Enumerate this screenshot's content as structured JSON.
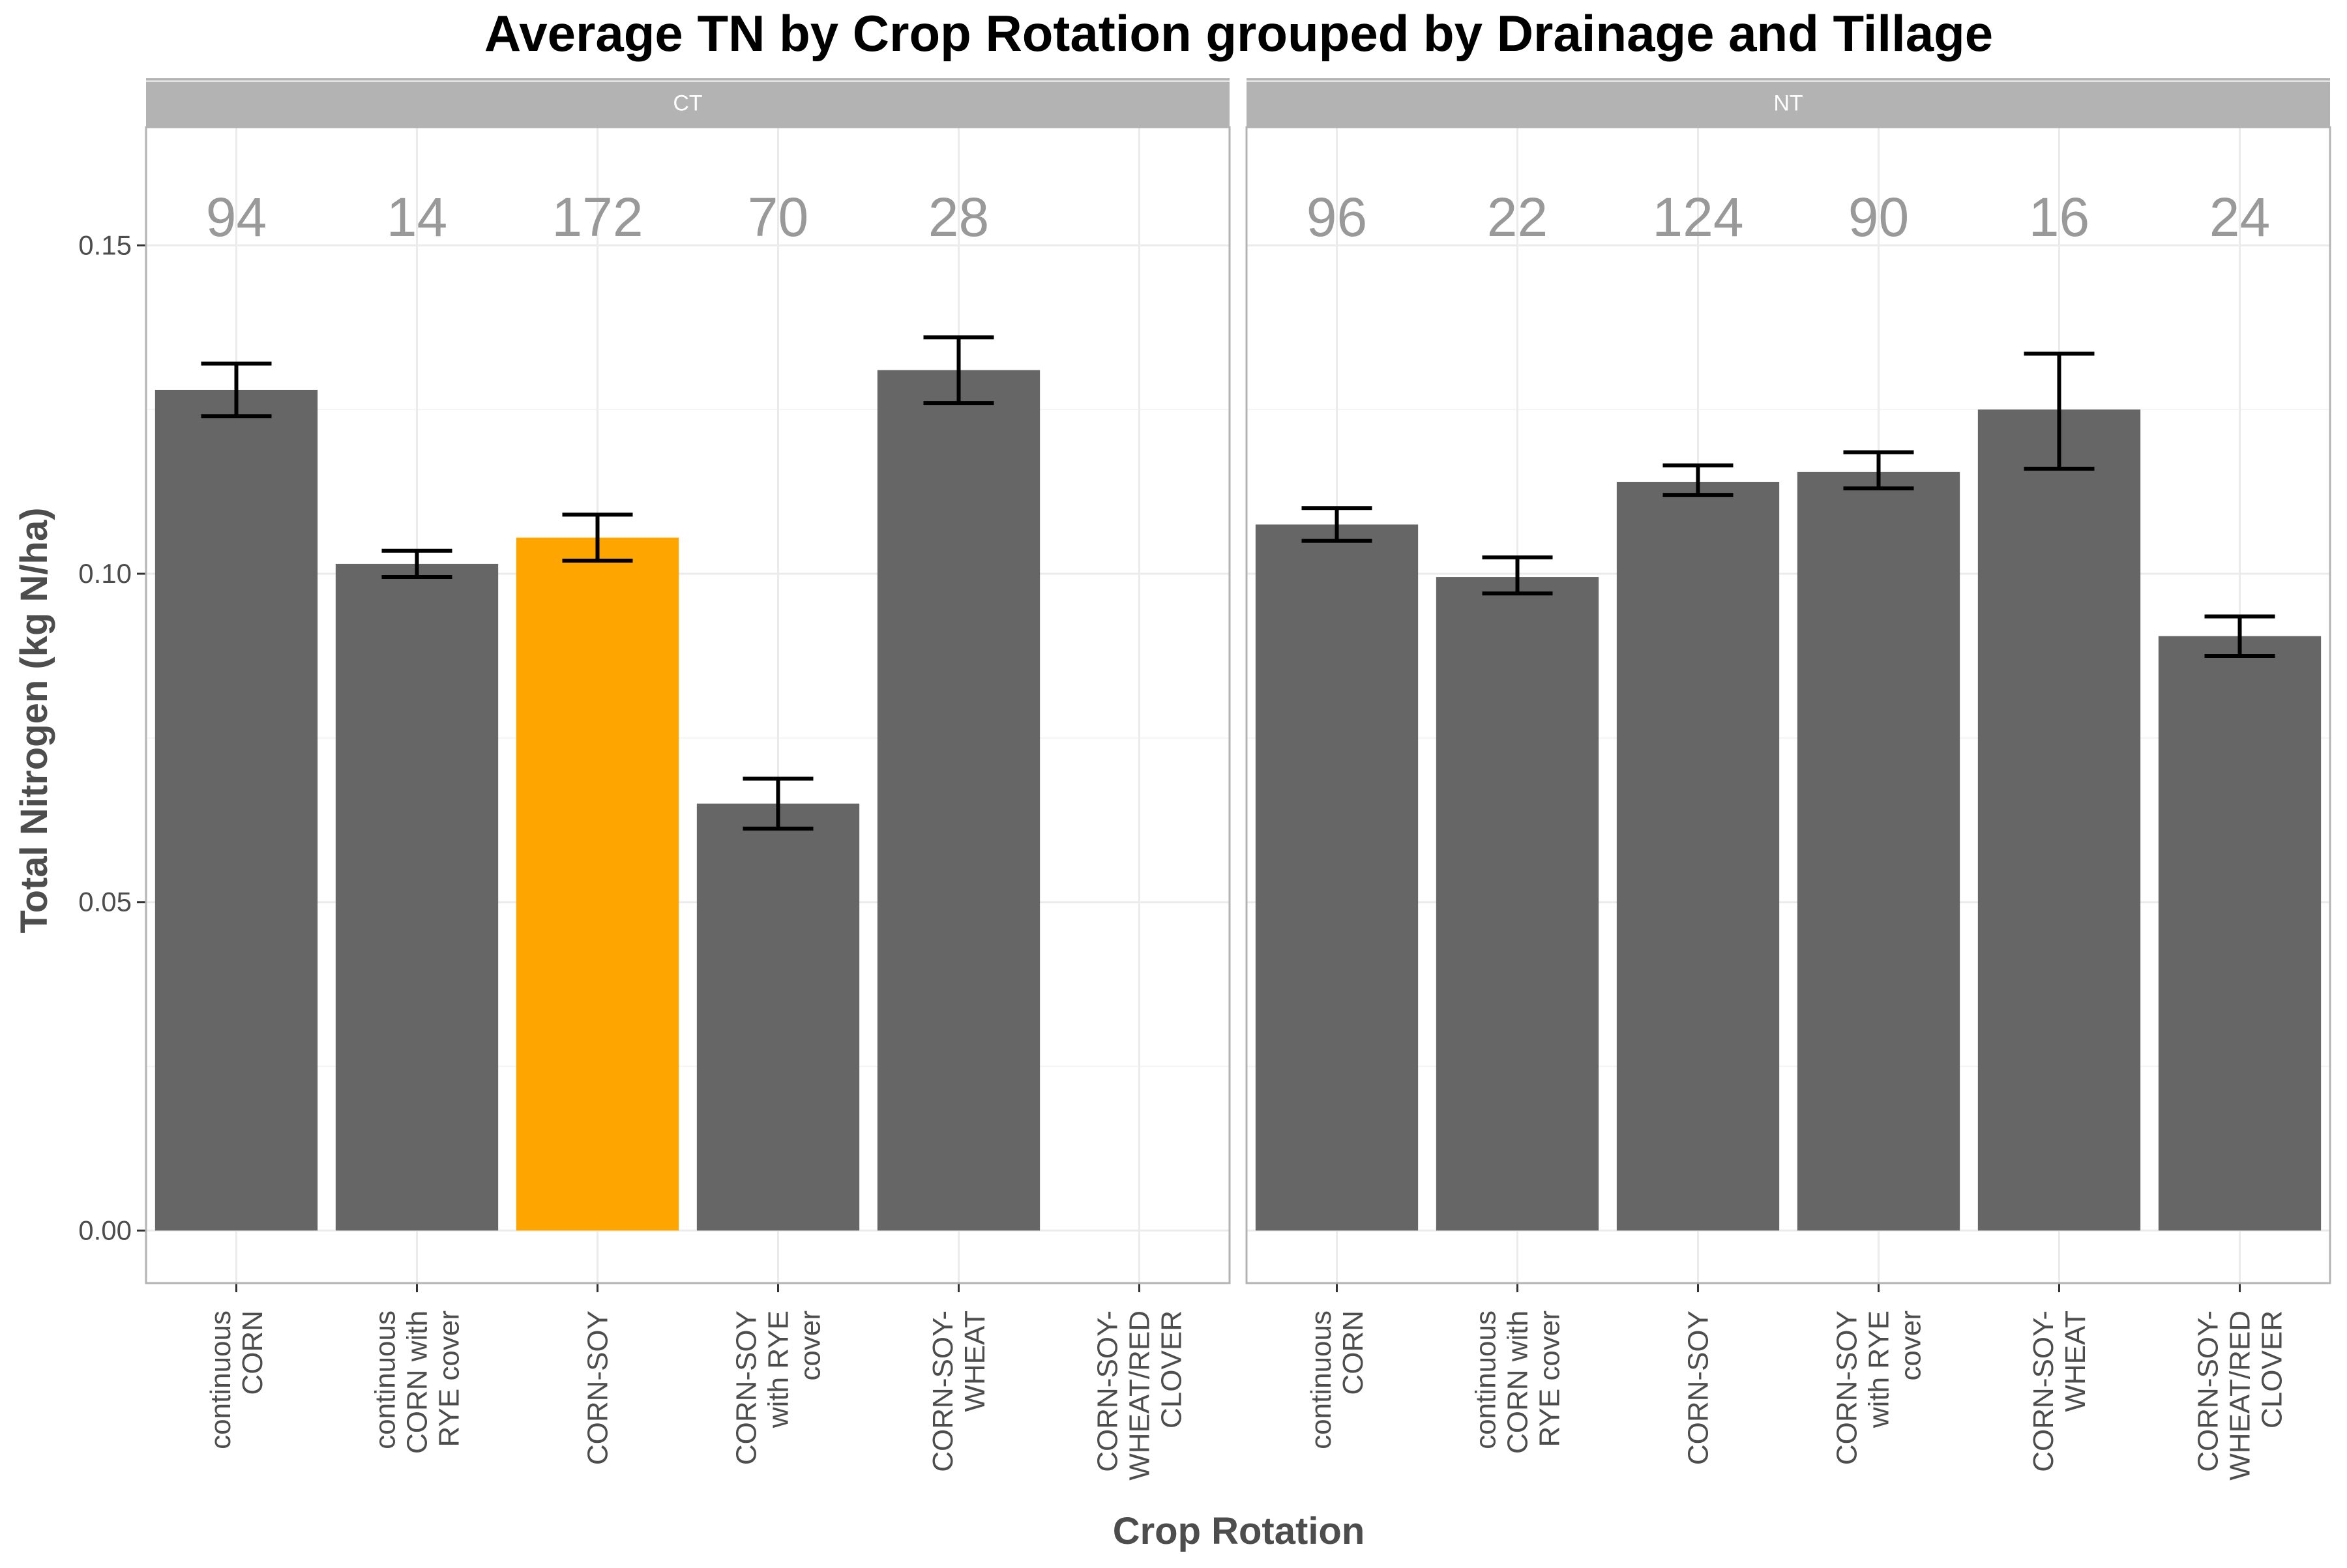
{
  "chart_data": {
    "type": "bar",
    "title": "Average TN by Crop Rotation grouped by Drainage and Tillage",
    "xlabel": "Crop Rotation",
    "ylabel": "Total Nitrogen (kg N/ha)",
    "ylim": [
      -0.008,
      0.168
    ],
    "yticks": [
      0.0,
      0.05,
      0.1,
      0.15
    ],
    "ytick_labels": [
      "0.00",
      "0.05",
      "0.10",
      "0.15"
    ],
    "grid": true,
    "legend": "none",
    "categories": [
      [
        "continuous",
        "CORN"
      ],
      [
        "continuous",
        "CORN with",
        "RYE cover"
      ],
      [
        "CORN-SOY"
      ],
      [
        "CORN-SOY",
        "with RYE",
        "cover"
      ],
      [
        "CORN-SOY-",
        "WHEAT"
      ],
      [
        "CORN-SOY-",
        "WHEAT/RED",
        "CLOVER"
      ]
    ],
    "colors": {
      "bar": "#666666",
      "highlight": "#FFA500",
      "strip": "#B3B3B3",
      "strip_text": "#FFFFFF",
      "count_text": "#999999",
      "grid": "#EBEBEB",
      "panel_border": "#B3B3B3",
      "error_bar": "#000000"
    },
    "panels": [
      {
        "label": "CT",
        "values": [
          0.128,
          0.1015,
          0.1055,
          0.065,
          0.131,
          null
        ],
        "err_low": [
          0.124,
          0.0995,
          0.102,
          0.0612,
          0.126,
          null
        ],
        "err_high": [
          0.132,
          0.1035,
          0.109,
          0.0688,
          0.136,
          null
        ],
        "counts": [
          "94",
          "14",
          "172",
          "70",
          "28",
          ""
        ],
        "highlight": [
          false,
          false,
          true,
          false,
          false,
          false
        ]
      },
      {
        "label": "NT",
        "values": [
          0.1075,
          0.0995,
          0.114,
          0.1155,
          0.125,
          0.0905
        ],
        "err_low": [
          0.105,
          0.097,
          0.112,
          0.113,
          0.116,
          0.0875
        ],
        "err_high": [
          0.11,
          0.1025,
          0.1165,
          0.1185,
          0.1335,
          0.0935
        ],
        "counts": [
          "96",
          "22",
          "124",
          "90",
          "16",
          "24"
        ],
        "highlight": [
          false,
          false,
          false,
          false,
          false,
          false
        ]
      }
    ]
  }
}
